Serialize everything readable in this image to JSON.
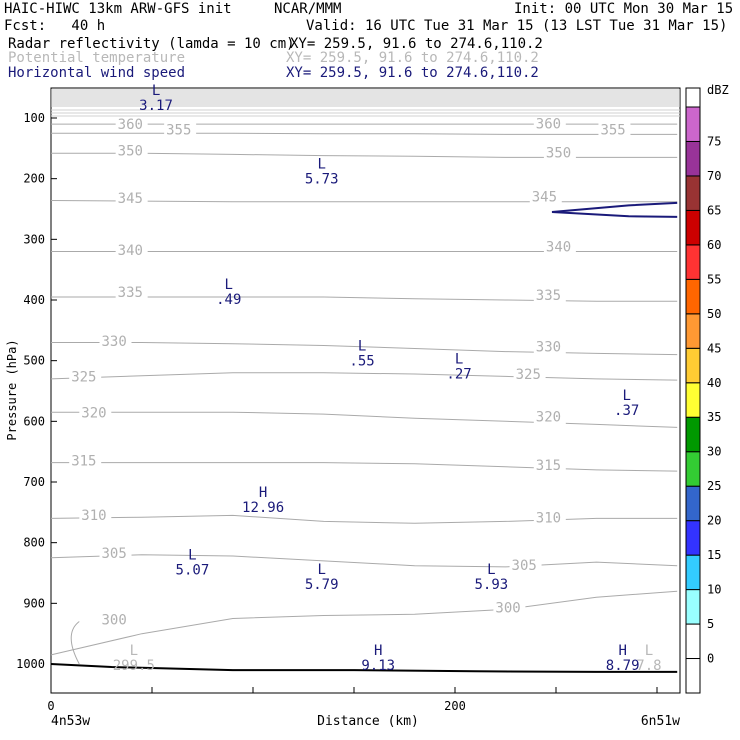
{
  "header": {
    "model": "HAIC-HIWC 13km ARW-GFS init",
    "org": "NCAR/MMM",
    "init": "Init: 00 UTC Mon 30 Mar 15",
    "fcst": "Fcst:   40 h",
    "valid": "Valid: 16 UTC Tue 31 Mar 15 (13 LST Tue 31 Mar 15)",
    "fields": [
      {
        "name": "Radar reflectivity (lamda = 10 cm)",
        "xy": "XY= 259.5, 91.6 to 274.6,110.2",
        "color": "#000000"
      },
      {
        "name": "Potential temperature",
        "xy": "XY= 259.5, 91.6 to 274.6,110.2",
        "color": "#b8b8b8"
      },
      {
        "name": "Horizontal wind speed",
        "xy": "XY= 259.5, 91.6 to 274.6,110.2",
        "color": "#1a1a7a"
      }
    ]
  },
  "chart_data": {
    "type": "contour",
    "ylabel": "Pressure (hPa)",
    "xlabel": "Distance (km)",
    "y_ticks": [
      "100",
      "200",
      "300",
      "400",
      "500",
      "600",
      "700",
      "800",
      "900",
      "1000"
    ],
    "x_ticks": [
      "0",
      "200"
    ],
    "x_start_label": "4n53w",
    "x_end_label": "6n51w",
    "ylim": [
      1050,
      50
    ],
    "xlim": [
      0,
      310
    ],
    "theta_contours": [
      {
        "label": "300",
        "y": [
          985,
          950,
          925,
          920,
          918,
          910,
          890,
          880
        ]
      },
      {
        "label": "305",
        "y": [
          825,
          820,
          822,
          830,
          838,
          840,
          832,
          838
        ]
      },
      {
        "label": "310",
        "y": [
          760,
          758,
          755,
          765,
          768,
          765,
          760,
          760
        ]
      },
      {
        "label": "315",
        "y": [
          668,
          668,
          668,
          668,
          670,
          675,
          680,
          682
        ]
      },
      {
        "label": "320",
        "y": [
          585,
          585,
          585,
          588,
          595,
          600,
          605,
          610
        ]
      },
      {
        "label": "325",
        "y": [
          530,
          525,
          520,
          520,
          522,
          526,
          530,
          532
        ]
      },
      {
        "label": "330",
        "y": [
          470,
          470,
          472,
          475,
          480,
          485,
          488,
          490
        ]
      },
      {
        "label": "335",
        "y": [
          395,
          395,
          395,
          395,
          398,
          400,
          402,
          402
        ]
      },
      {
        "label": "340",
        "y": [
          320,
          320,
          320,
          320,
          320,
          320,
          320,
          320
        ]
      },
      {
        "label": "345",
        "y": [
          236,
          237,
          238,
          238,
          238,
          238,
          238,
          238
        ]
      },
      {
        "label": "350",
        "y": [
          158,
          158,
          160,
          162,
          163,
          165,
          165,
          165
        ]
      },
      {
        "label": "355",
        "y": [
          125,
          125,
          125,
          126,
          126,
          127,
          127,
          127
        ]
      },
      {
        "label": "360",
        "y": [
          110,
          110,
          110,
          110,
          110,
          110,
          110,
          110
        ]
      }
    ],
    "theta_x": [
      0,
      45,
      90,
      135,
      180,
      225,
      270,
      310
    ],
    "theta_labels": [
      {
        "text": "360",
        "x": 33,
        "p": 118
      },
      {
        "text": "355",
        "x": 57,
        "p": 127
      },
      {
        "text": "350",
        "x": 33,
        "p": 162
      },
      {
        "text": "345",
        "x": 33,
        "p": 240
      },
      {
        "text": "340",
        "x": 33,
        "p": 326
      },
      {
        "text": "335",
        "x": 33,
        "p": 395
      },
      {
        "text": "330",
        "x": 25,
        "p": 476
      },
      {
        "text": "325",
        "x": 10,
        "p": 534
      },
      {
        "text": "320",
        "x": 15,
        "p": 594
      },
      {
        "text": "315",
        "x": 10,
        "p": 673
      },
      {
        "text": "310",
        "x": 15,
        "p": 763
      },
      {
        "text": "305",
        "x": 25,
        "p": 825
      },
      {
        "text": "300",
        "x": 25,
        "p": 935
      },
      {
        "text": "360",
        "x": 240,
        "p": 117
      },
      {
        "text": "355",
        "x": 272,
        "p": 127
      },
      {
        "text": "350",
        "x": 245,
        "p": 165
      },
      {
        "text": "345",
        "x": 238,
        "p": 238
      },
      {
        "text": "340",
        "x": 245,
        "p": 320
      },
      {
        "text": "335",
        "x": 240,
        "p": 400
      },
      {
        "text": "330",
        "x": 240,
        "p": 485
      },
      {
        "text": "325",
        "x": 230,
        "p": 530
      },
      {
        "text": "320",
        "x": 240,
        "p": 600
      },
      {
        "text": "315",
        "x": 240,
        "p": 680
      },
      {
        "text": "310",
        "x": 240,
        "p": 767
      },
      {
        "text": "305",
        "x": 228,
        "p": 845
      },
      {
        "text": "300",
        "x": 220,
        "p": 915
      }
    ],
    "min_max_labels": [
      {
        "mark": "L",
        "value": "3.17",
        "x": 52,
        "p": 62,
        "color": "#1a1a7a"
      },
      {
        "mark": "L",
        "value": "5.73",
        "x": 134,
        "p": 183,
        "color": "#1a1a7a"
      },
      {
        "mark": "L",
        "value": ".49",
        "x": 88,
        "p": 382,
        "color": "#1a1a7a"
      },
      {
        "mark": "L",
        "value": ".55",
        "x": 154,
        "p": 483,
        "color": "#1a1a7a"
      },
      {
        "mark": "L",
        "value": ".27",
        "x": 202,
        "p": 505,
        "color": "#1a1a7a"
      },
      {
        "mark": "L",
        "value": ".37",
        "x": 285,
        "p": 565,
        "color": "#1a1a7a"
      },
      {
        "mark": "H",
        "value": "12.96",
        "x": 105,
        "p": 725,
        "color": "#1a1a7a"
      },
      {
        "mark": "L",
        "value": "5.07",
        "x": 70,
        "p": 828,
        "color": "#1a1a7a"
      },
      {
        "mark": "L",
        "value": "5.79",
        "x": 134,
        "p": 852,
        "color": "#1a1a7a"
      },
      {
        "mark": "L",
        "value": "5.93",
        "x": 218,
        "p": 852,
        "color": "#1a1a7a"
      },
      {
        "mark": "L",
        "value": "299.5",
        "x": 41,
        "p": 985,
        "color": "#b8b8b8"
      },
      {
        "mark": "H",
        "value": "9.13",
        "x": 162,
        "p": 985,
        "color": "#1a1a7a"
      },
      {
        "mark": "H",
        "value": "8.79",
        "x": 283,
        "p": 985,
        "color": "#1a1a7a"
      },
      {
        "mark": "L",
        "value": "7.8",
        "x": 296,
        "p": 985,
        "color": "#b8b8b8"
      }
    ],
    "wind_contour": {
      "x": [
        248,
        286,
        310
      ],
      "p_upper": [
        255,
        244,
        240
      ],
      "p_lower": [
        255,
        262,
        263
      ],
      "color": "#1a1a7a"
    },
    "terrain": {
      "x": [
        0,
        30,
        90,
        150,
        210,
        270,
        310
      ],
      "p": [
        1000,
        1005,
        1010,
        1010,
        1012,
        1013,
        1013
      ]
    },
    "colorbar": {
      "unit": "dBZ",
      "levels": [
        "0",
        "5",
        "10",
        "15",
        "20",
        "25",
        "30",
        "35",
        "40",
        "45",
        "50",
        "55",
        "60",
        "65",
        "70",
        "75"
      ],
      "colors": [
        "#ffffff",
        "#99ffff",
        "#33ccff",
        "#3333ff",
        "#3366cc",
        "#33cc33",
        "#009900",
        "#ffff33",
        "#ffcc33",
        "#ff9933",
        "#ff6600",
        "#ff3333",
        "#cc0000",
        "#993333",
        "#993399",
        "#cc66cc"
      ]
    }
  }
}
